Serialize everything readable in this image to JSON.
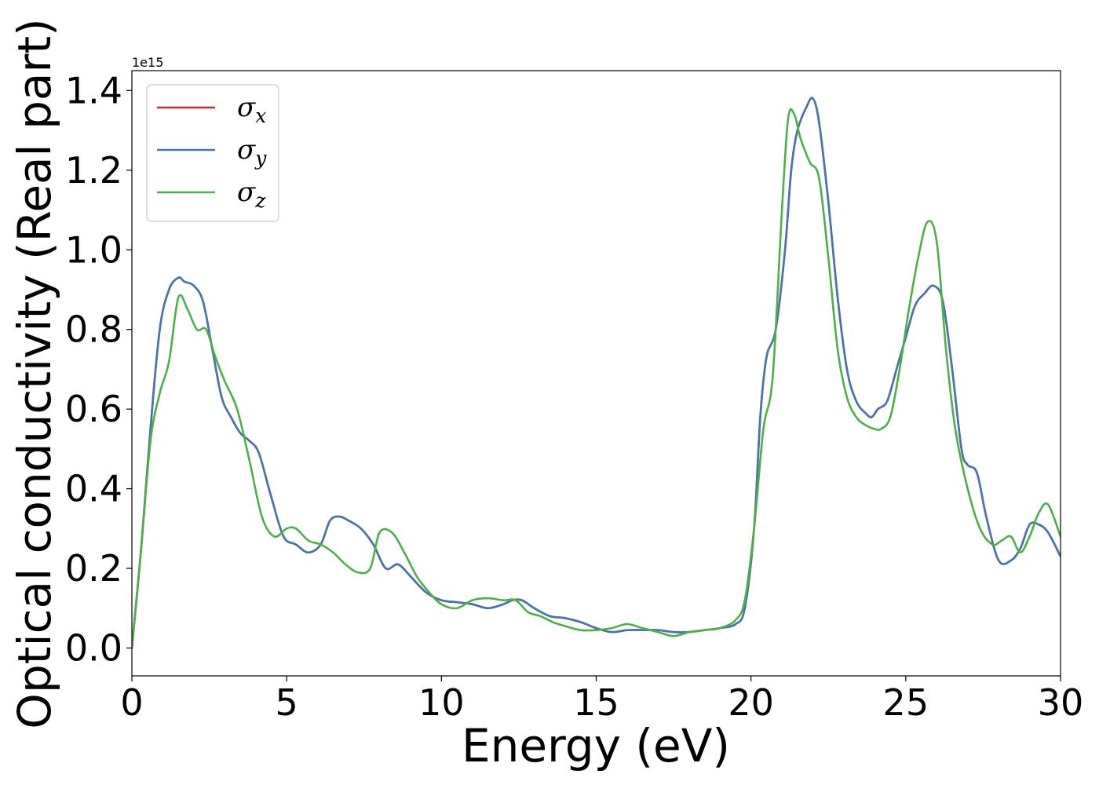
{
  "chart_data": {
    "type": "line",
    "title": "",
    "xlabel": "Energy (eV)",
    "ylabel": "Optical conductivity (Real part)",
    "y_offset_text": "1e15",
    "xlim": [
      0,
      30
    ],
    "ylim": [
      -0.07,
      1.45
    ],
    "y_scale_factor": 1000000000000000.0,
    "x_ticks": [
      0,
      5,
      10,
      15,
      20,
      25,
      30
    ],
    "x_tick_labels": [
      "0",
      "5",
      "10",
      "15",
      "20",
      "25",
      "30"
    ],
    "y_ticks": [
      0.0,
      0.2,
      0.4,
      0.6,
      0.8,
      1.0,
      1.2,
      1.4
    ],
    "y_tick_labels": [
      "0.0",
      "0.2",
      "0.4",
      "0.6",
      "0.8",
      "1.0",
      "1.2",
      "1.4"
    ],
    "grid": false,
    "legend_position": "top-left",
    "series": [
      {
        "name": "σx",
        "base": "σ",
        "sub": "x",
        "color": "#d62728",
        "x": [
          0,
          0.3,
          0.6,
          0.9,
          1.2,
          1.5,
          1.7,
          2.0,
          2.3,
          2.6,
          2.9,
          3.2,
          3.5,
          3.8,
          4.1,
          4.5,
          4.9,
          5.3,
          5.7,
          6.1,
          6.4,
          6.7,
          7.0,
          7.4,
          7.8,
          8.2,
          8.6,
          9.0,
          9.5,
          10.0,
          10.5,
          11.0,
          11.5,
          12.0,
          12.3,
          12.6,
          13.0,
          13.5,
          14.0,
          14.5,
          15.0,
          15.5,
          16.0,
          16.5,
          17.0,
          17.5,
          18.0,
          18.5,
          19.0,
          19.5,
          19.8,
          20.1,
          20.3,
          20.5,
          20.8,
          21.1,
          21.3,
          21.5,
          21.8,
          22.0,
          22.2,
          22.5,
          22.8,
          23.1,
          23.4,
          23.7,
          23.9,
          24.1,
          24.4,
          24.7,
          25.0,
          25.3,
          25.6,
          25.9,
          26.2,
          26.5,
          26.8,
          27.0,
          27.3,
          27.6,
          28.0,
          28.4,
          28.7,
          29.0,
          29.3,
          29.6,
          30.0
        ],
        "y": [
          0.0,
          0.25,
          0.55,
          0.8,
          0.9,
          0.93,
          0.92,
          0.91,
          0.87,
          0.75,
          0.63,
          0.58,
          0.54,
          0.52,
          0.49,
          0.38,
          0.28,
          0.26,
          0.24,
          0.26,
          0.32,
          0.33,
          0.32,
          0.3,
          0.26,
          0.2,
          0.21,
          0.18,
          0.14,
          0.12,
          0.115,
          0.11,
          0.1,
          0.11,
          0.12,
          0.12,
          0.1,
          0.08,
          0.075,
          0.065,
          0.05,
          0.04,
          0.045,
          0.045,
          0.045,
          0.04,
          0.04,
          0.045,
          0.05,
          0.06,
          0.1,
          0.3,
          0.58,
          0.73,
          0.8,
          1.0,
          1.2,
          1.3,
          1.36,
          1.38,
          1.32,
          1.12,
          0.88,
          0.7,
          0.62,
          0.59,
          0.58,
          0.6,
          0.62,
          0.7,
          0.78,
          0.86,
          0.89,
          0.91,
          0.87,
          0.7,
          0.5,
          0.46,
          0.44,
          0.33,
          0.22,
          0.22,
          0.25,
          0.31,
          0.31,
          0.29,
          0.23
        ]
      },
      {
        "name": "σy",
        "base": "σ",
        "sub": "y",
        "color": "#4477aa",
        "x": [
          0,
          0.3,
          0.6,
          0.9,
          1.2,
          1.5,
          1.7,
          2.0,
          2.3,
          2.6,
          2.9,
          3.2,
          3.5,
          3.8,
          4.1,
          4.5,
          4.9,
          5.3,
          5.7,
          6.1,
          6.4,
          6.7,
          7.0,
          7.4,
          7.8,
          8.2,
          8.6,
          9.0,
          9.5,
          10.0,
          10.5,
          11.0,
          11.5,
          12.0,
          12.3,
          12.6,
          13.0,
          13.5,
          14.0,
          14.5,
          15.0,
          15.5,
          16.0,
          16.5,
          17.0,
          17.5,
          18.0,
          18.5,
          19.0,
          19.5,
          19.8,
          20.1,
          20.3,
          20.5,
          20.8,
          21.1,
          21.3,
          21.5,
          21.8,
          22.0,
          22.2,
          22.5,
          22.8,
          23.1,
          23.4,
          23.7,
          23.9,
          24.1,
          24.4,
          24.7,
          25.0,
          25.3,
          25.6,
          25.9,
          26.2,
          26.5,
          26.8,
          27.0,
          27.3,
          27.6,
          28.0,
          28.4,
          28.7,
          29.0,
          29.3,
          29.6,
          30.0
        ],
        "y": [
          0.0,
          0.25,
          0.55,
          0.8,
          0.9,
          0.93,
          0.92,
          0.91,
          0.87,
          0.75,
          0.63,
          0.58,
          0.54,
          0.52,
          0.49,
          0.38,
          0.28,
          0.26,
          0.24,
          0.26,
          0.32,
          0.33,
          0.32,
          0.3,
          0.26,
          0.2,
          0.21,
          0.18,
          0.14,
          0.12,
          0.115,
          0.11,
          0.1,
          0.11,
          0.12,
          0.12,
          0.1,
          0.08,
          0.075,
          0.065,
          0.05,
          0.04,
          0.045,
          0.045,
          0.045,
          0.04,
          0.04,
          0.045,
          0.05,
          0.06,
          0.1,
          0.3,
          0.58,
          0.73,
          0.8,
          1.0,
          1.2,
          1.3,
          1.36,
          1.38,
          1.32,
          1.12,
          0.88,
          0.7,
          0.62,
          0.59,
          0.58,
          0.6,
          0.62,
          0.7,
          0.78,
          0.86,
          0.89,
          0.91,
          0.87,
          0.7,
          0.5,
          0.46,
          0.44,
          0.33,
          0.22,
          0.22,
          0.25,
          0.31,
          0.31,
          0.29,
          0.23
        ]
      },
      {
        "name": "σz",
        "base": "σ",
        "sub": "z",
        "color": "#4daf4a",
        "x": [
          0,
          0.3,
          0.6,
          0.9,
          1.2,
          1.5,
          1.8,
          2.1,
          2.4,
          2.7,
          3.0,
          3.4,
          3.8,
          4.2,
          4.6,
          5.0,
          5.3,
          5.7,
          6.1,
          6.5,
          6.9,
          7.3,
          7.7,
          8.0,
          8.4,
          8.8,
          9.2,
          9.6,
          10.0,
          10.5,
          11.0,
          11.5,
          12.0,
          12.4,
          12.8,
          13.2,
          13.6,
          14.0,
          14.5,
          15.0,
          15.5,
          16.0,
          16.5,
          17.0,
          17.5,
          18.0,
          18.5,
          19.0,
          19.5,
          19.8,
          20.1,
          20.4,
          20.7,
          21.0,
          21.2,
          21.4,
          21.6,
          21.9,
          22.2,
          22.5,
          22.8,
          23.1,
          23.4,
          23.7,
          24.0,
          24.2,
          24.5,
          24.8,
          25.1,
          25.4,
          25.7,
          26.0,
          26.3,
          26.6,
          27.0,
          27.4,
          27.8,
          28.1,
          28.4,
          28.7,
          29.0,
          29.3,
          29.6,
          30.0
        ],
        "y": [
          0.0,
          0.25,
          0.52,
          0.64,
          0.72,
          0.88,
          0.85,
          0.8,
          0.8,
          0.73,
          0.67,
          0.6,
          0.47,
          0.33,
          0.28,
          0.3,
          0.3,
          0.27,
          0.26,
          0.24,
          0.21,
          0.19,
          0.2,
          0.29,
          0.29,
          0.24,
          0.18,
          0.14,
          0.11,
          0.1,
          0.12,
          0.125,
          0.12,
          0.12,
          0.09,
          0.08,
          0.065,
          0.055,
          0.045,
          0.045,
          0.05,
          0.06,
          0.05,
          0.04,
          0.03,
          0.04,
          0.045,
          0.05,
          0.07,
          0.12,
          0.3,
          0.55,
          0.68,
          1.1,
          1.33,
          1.34,
          1.28,
          1.22,
          1.18,
          0.98,
          0.75,
          0.63,
          0.58,
          0.56,
          0.55,
          0.55,
          0.58,
          0.7,
          0.85,
          0.98,
          1.07,
          1.02,
          0.75,
          0.55,
          0.4,
          0.3,
          0.26,
          0.27,
          0.28,
          0.24,
          0.28,
          0.34,
          0.36,
          0.28
        ]
      }
    ]
  }
}
